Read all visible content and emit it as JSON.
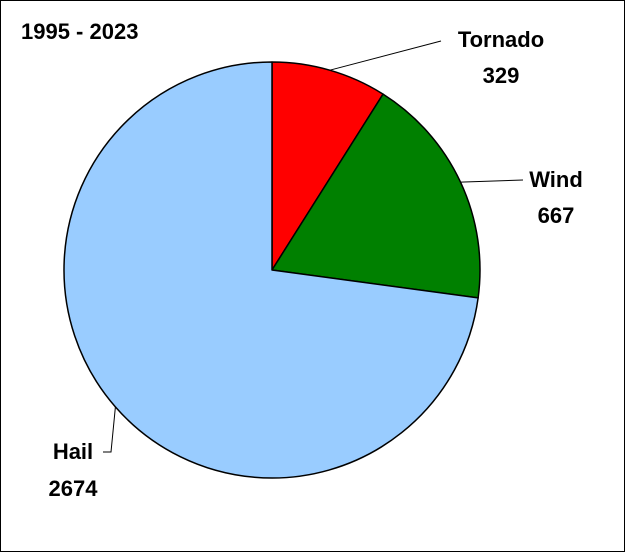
{
  "chart_data": {
    "type": "pie",
    "title": "1995 - 2023",
    "start_angle": "top",
    "direction": "clockwise",
    "legend": "none",
    "slices": [
      {
        "label": "Tornado",
        "value": 329,
        "value_text": "329",
        "color": "#ff0000"
      },
      {
        "label": "Wind",
        "value": 667,
        "value_text": "667",
        "color": "#008000"
      },
      {
        "label": "Hail",
        "value": 2674,
        "value_text": "2674",
        "color": "#99ccff"
      }
    ]
  }
}
